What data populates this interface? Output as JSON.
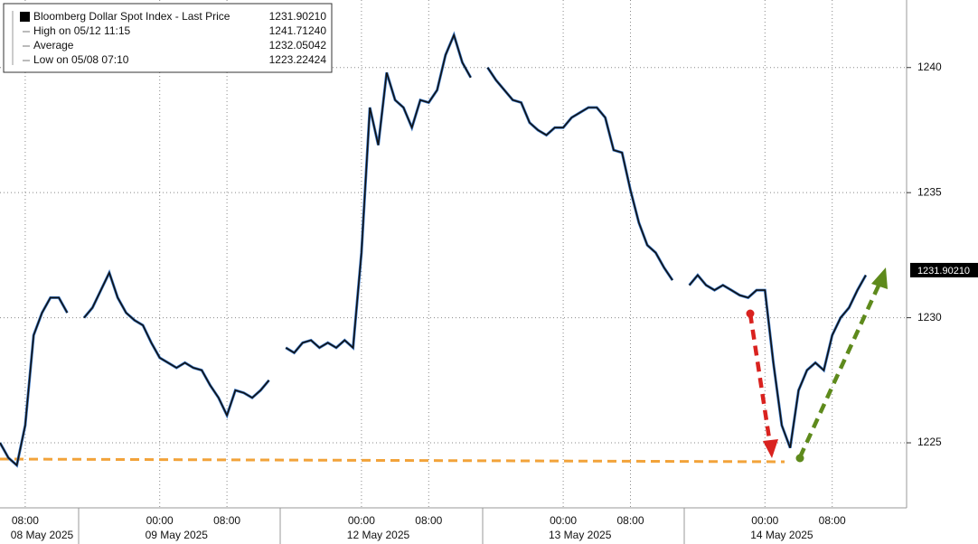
{
  "chart_data": {
    "type": "line",
    "legend": [
      {
        "label": "Bloomberg Dollar Spot Index - Last Price",
        "value": "1231.90210"
      },
      {
        "label": "High on 05/12 11:15",
        "value": "1241.71240"
      },
      {
        "label": "Average",
        "value": "1232.05042"
      },
      {
        "label": "Low on 05/08 07:10",
        "value": "1223.22424"
      }
    ],
    "last_price": {
      "value": 1231.9021,
      "label": "1231.90210"
    },
    "color": "#111111",
    "ylim": [
      1222.4,
      1242.7
    ],
    "yticks": [
      1225,
      1230,
      1235,
      1240
    ],
    "grid": true,
    "categories": [
      null,
      null,
      null,
      "08:00",
      null,
      null,
      null,
      null,
      null,
      null,
      null,
      null,
      null,
      null,
      null,
      null,
      null,
      null,
      null,
      "00:00",
      null,
      null,
      null,
      null,
      null,
      null,
      null,
      "08:00",
      null,
      null,
      null,
      null,
      null,
      null,
      null,
      null,
      null,
      null,
      null,
      null,
      null,
      null,
      null,
      "00:00",
      null,
      null,
      null,
      null,
      null,
      null,
      null,
      "08:00",
      null,
      null,
      null,
      null,
      null,
      null,
      null,
      null,
      null,
      null,
      null,
      null,
      null,
      null,
      null,
      "00:00",
      null,
      null,
      null,
      null,
      null,
      null,
      null,
      "08:00",
      null,
      null,
      null,
      null,
      null,
      null,
      null,
      null,
      null,
      null,
      null,
      null,
      null,
      null,
      null,
      "00:00",
      null,
      null,
      null,
      null,
      null,
      null,
      null,
      "08:00",
      null,
      null,
      null,
      null,
      null,
      null,
      null,
      null
    ],
    "date_labels": [
      null,
      null,
      null,
      null,
      null,
      "08 May 2025",
      null,
      null,
      null,
      null,
      null,
      null,
      null,
      null,
      null,
      null,
      null,
      null,
      null,
      null,
      null,
      "09 May 2025",
      null,
      null,
      null,
      null,
      null,
      null,
      null,
      null,
      null,
      null,
      null,
      null,
      null,
      null,
      null,
      null,
      null,
      null,
      null,
      null,
      null,
      null,
      null,
      "12 May 2025",
      null,
      null,
      null,
      null,
      null,
      null,
      null,
      null,
      null,
      null,
      null,
      null,
      null,
      null,
      null,
      null,
      null,
      null,
      null,
      null,
      null,
      null,
      null,
      "13 May 2025",
      null,
      null,
      null,
      null,
      null,
      null,
      null,
      null,
      null,
      null,
      null,
      null,
      null,
      null,
      null,
      null,
      null,
      null,
      null,
      null,
      null,
      null,
      null,
      "14 May 2025",
      null,
      null,
      null,
      null,
      null,
      null,
      null,
      null,
      null,
      null,
      null,
      null,
      null,
      null
    ],
    "values": [
      1225.0,
      1224.4,
      1224.1,
      1225.7,
      1229.3,
      1230.2,
      1230.8,
      1230.8,
      1230.2,
      null,
      1230.0,
      1230.4,
      1231.1,
      1231.8,
      1230.8,
      1230.2,
      1229.9,
      1229.7,
      1229.0,
      1228.4,
      1228.2,
      1228.0,
      1228.2,
      1228.0,
      1227.9,
      1227.3,
      1226.8,
      1226.1,
      1227.1,
      1227.0,
      1226.8,
      1227.1,
      1227.5,
      null,
      1228.8,
      1228.6,
      1229.0,
      1229.1,
      1228.8,
      1229.0,
      1228.8,
      1229.1,
      1228.8,
      1232.6,
      1238.4,
      1236.9,
      1239.8,
      1238.7,
      1238.4,
      1237.6,
      1238.7,
      1238.6,
      1239.1,
      1240.5,
      1241.3,
      1240.2,
      1239.6,
      null,
      1240.0,
      1239.5,
      1239.1,
      1238.7,
      1238.6,
      1237.8,
      1237.5,
      1237.3,
      1237.6,
      1237.6,
      1238.0,
      1238.2,
      1238.4,
      1238.4,
      1238.0,
      1236.7,
      1236.6,
      1235.1,
      1233.8,
      1232.9,
      1232.6,
      1232.0,
      1231.5,
      null,
      1231.3,
      1231.7,
      1231.3,
      1231.1,
      1231.3,
      1231.1,
      1230.9,
      1230.8,
      1231.1,
      1231.1,
      1228.2,
      1225.7,
      1224.8,
      1227.1,
      1227.9,
      1228.2,
      1227.9,
      1229.3,
      1230.0,
      1230.4,
      1231.1,
      1231.7,
      null,
      null,
      null,
      null
    ]
  }
}
